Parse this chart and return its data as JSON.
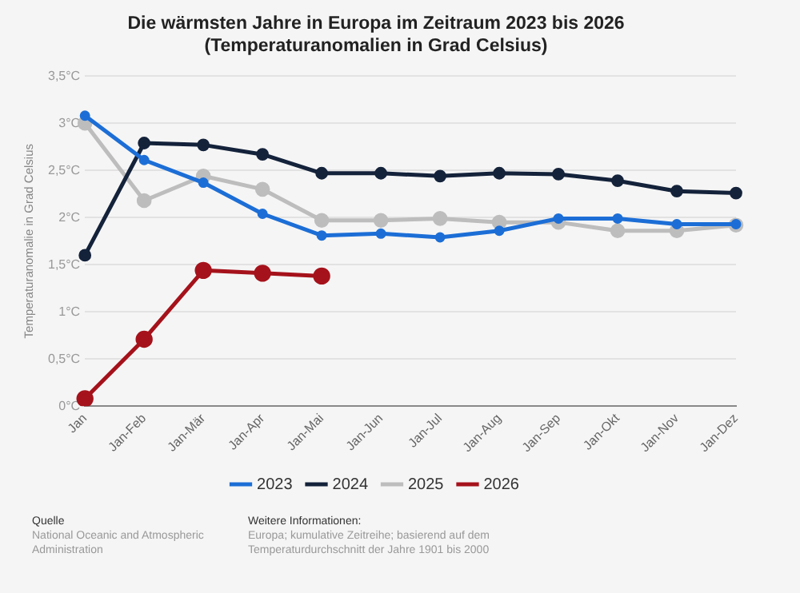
{
  "chart_data": {
    "type": "line",
    "title": "Die wärmsten Jahre in Europa im Zeitraum 2023 bis 2026 (Temperaturanomalien in Grad Celsius)",
    "ylabel": "Temperaturanomalie in Grad Celsius",
    "categories": [
      "Jan",
      "Jan-Feb",
      "Jan-Mär",
      "Jan-Apr",
      "Jan-Mai",
      "Jan-Jun",
      "Jan-Jul",
      "Jan-Aug",
      "Jan-Sep",
      "Jan-Okt",
      "Jan-Nov",
      "Jan-Dez"
    ],
    "series": [
      {
        "name": "2023",
        "color": "#1c6ed6",
        "values": [
          3.08,
          2.61,
          2.37,
          2.04,
          1.81,
          1.83,
          1.79,
          1.86,
          1.99,
          1.99,
          1.93,
          1.93
        ]
      },
      {
        "name": "2024",
        "color": "#14223a",
        "values": [
          1.6,
          2.79,
          2.77,
          2.67,
          2.47,
          2.47,
          2.44,
          2.47,
          2.46,
          2.39,
          2.28,
          2.26
        ]
      },
      {
        "name": "2025",
        "color": "#bdbdbd",
        "values": [
          3.0,
          2.18,
          2.44,
          2.3,
          1.97,
          1.97,
          1.99,
          1.95,
          1.95,
          1.86,
          1.86,
          1.92
        ]
      },
      {
        "name": "2026",
        "color": "#a5121b",
        "values": [
          0.08,
          0.71,
          1.44,
          1.41,
          1.38,
          null,
          null,
          null,
          null,
          null,
          null,
          null
        ]
      }
    ],
    "ylim": [
      0,
      3.5
    ],
    "yticks": [
      {
        "value": 0,
        "label": "0°C"
      },
      {
        "value": 0.5,
        "label": "0,5°C"
      },
      {
        "value": 1,
        "label": "1°C"
      },
      {
        "value": 1.5,
        "label": "1,5°C"
      },
      {
        "value": 2,
        "label": "2°C"
      },
      {
        "value": 2.5,
        "label": "2,5°C"
      },
      {
        "value": 3,
        "label": "3°C"
      },
      {
        "value": 3.5,
        "label": "3,5°C"
      }
    ],
    "grid": "y",
    "legend": "bottom",
    "marker": "circle",
    "line_style": "solid",
    "annotations": [
      "Quelle",
      "National Oceanic and Atmospheric Administration",
      "Weitere Informationen:",
      "Europa; kumulative Zeitreihe; basierend auf dem Temperaturdurchschnitt der Jahre 1901 bis 2000"
    ]
  }
}
